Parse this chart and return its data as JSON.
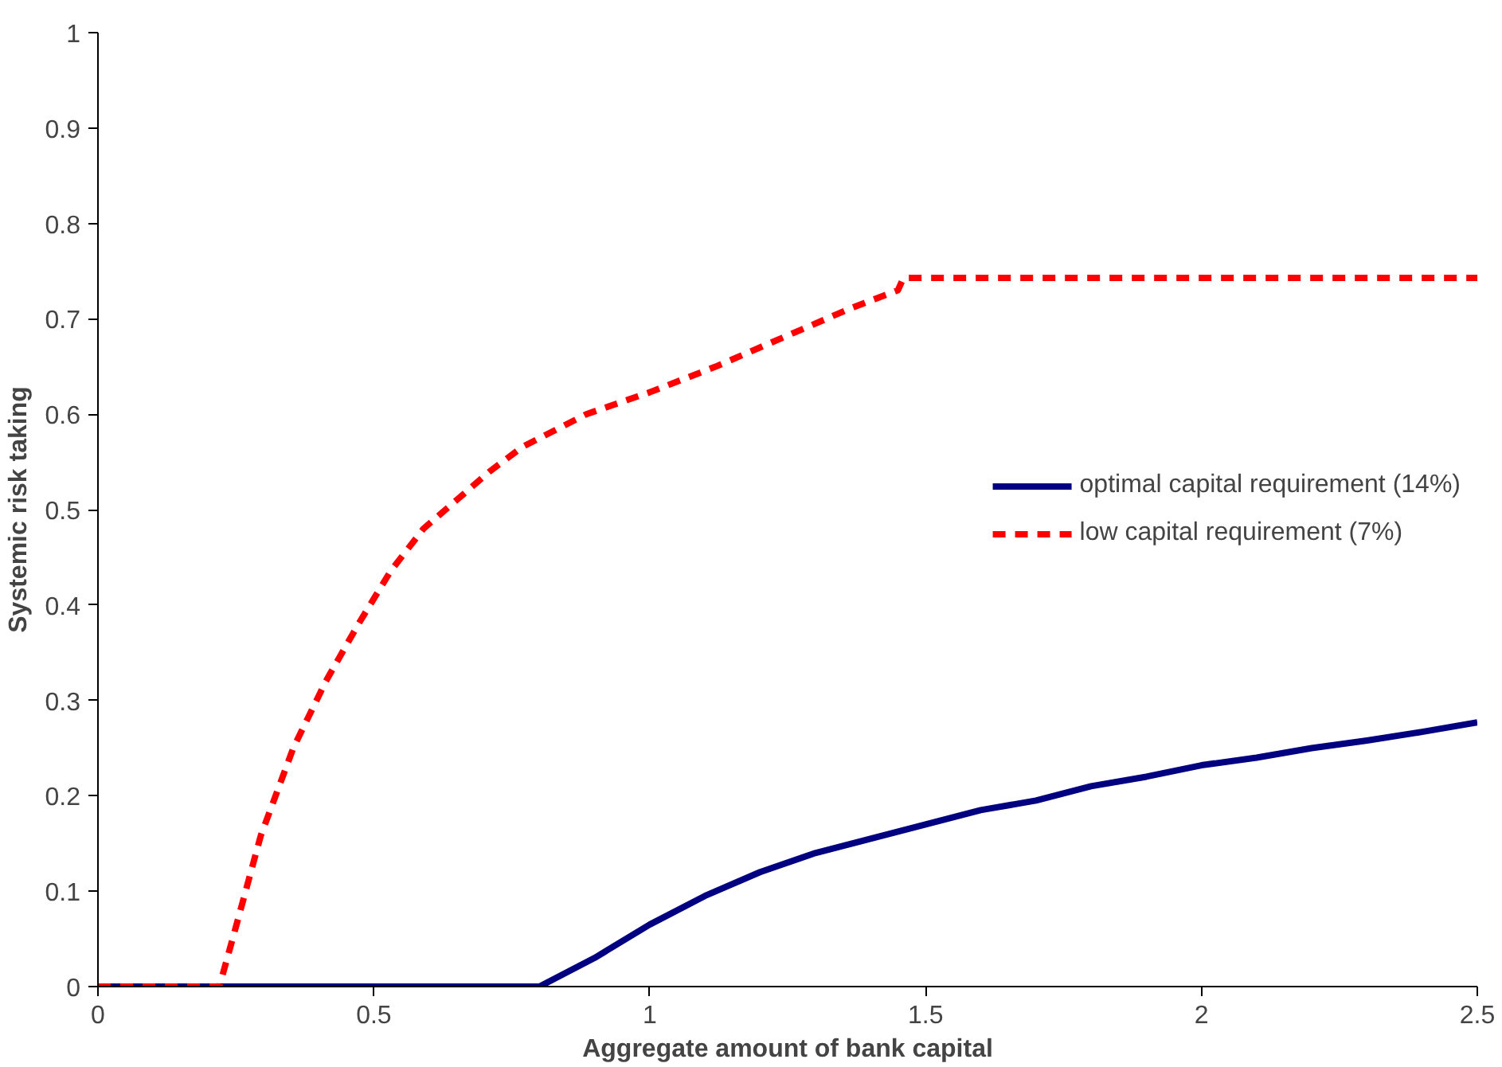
{
  "chart_data": {
    "type": "line",
    "xlabel": "Aggregate amount of bank capital",
    "ylabel": "Systemic risk taking",
    "xlim": [
      0,
      2.5
    ],
    "ylim": [
      0,
      1
    ],
    "xticks": [
      0,
      0.5,
      1,
      1.5,
      2,
      2.5
    ],
    "yticks": [
      0,
      0.1,
      0.2,
      0.3,
      0.4,
      0.5,
      0.6,
      0.7,
      0.8,
      0.9,
      1
    ],
    "grid": false,
    "legend": "right",
    "marker": "none",
    "series": [
      {
        "name": "optimal capital requirement (14%)",
        "color": "#000080",
        "line_style": "solid",
        "x": [
          0,
          0.8,
          0.9,
          1.0,
          1.1,
          1.2,
          1.3,
          1.4,
          1.5,
          1.6,
          1.7,
          1.8,
          1.9,
          2.0,
          2.1,
          2.2,
          2.3,
          2.4,
          2.5
        ],
        "values": [
          0,
          0,
          0.03,
          0.065,
          0.095,
          0.12,
          0.14,
          0.155,
          0.17,
          0.185,
          0.195,
          0.21,
          0.22,
          0.232,
          0.24,
          0.25,
          0.258,
          0.267,
          0.277
        ]
      },
      {
        "name": "low capital requirement (7%)",
        "color": "#ff0000",
        "line_style": "dashed",
        "x": [
          0,
          0.22,
          0.25,
          0.295,
          0.354,
          0.413,
          0.472,
          0.531,
          0.59,
          0.65,
          0.71,
          0.77,
          0.885,
          1.0,
          1.12,
          1.24,
          1.36,
          1.45,
          1.46,
          2.5
        ],
        "values": [
          0,
          0,
          0.0625,
          0.158,
          0.25,
          0.32,
          0.38,
          0.436,
          0.48,
          0.51,
          0.54,
          0.566,
          0.6,
          0.623,
          0.65,
          0.68,
          0.71,
          0.73,
          0.743,
          0.743
        ]
      }
    ]
  }
}
